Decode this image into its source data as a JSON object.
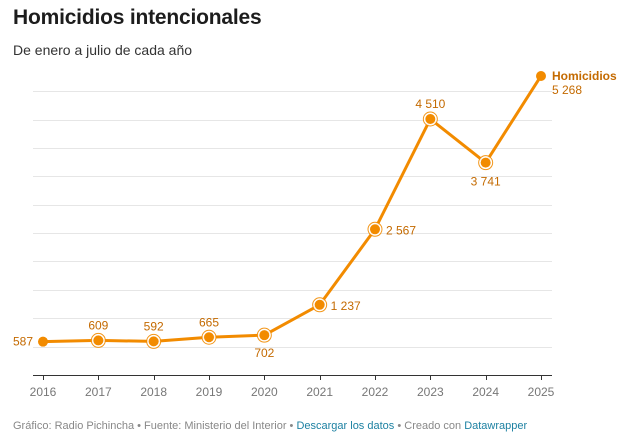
{
  "header": {
    "title": "Homicidios intencionales",
    "subtitle": "De enero a julio de cada año"
  },
  "footer": {
    "credit": "Gráfico: Radio Pichincha",
    "separator": " • ",
    "source": "Fuente: Ministerio del Interior",
    "download_link": "Descargar los datos",
    "created_with": "Creado con",
    "tool_link": "Datawrapper"
  },
  "colors": {
    "line": "#f28b00",
    "label": "#c46a00",
    "grid": "#e6e6e6",
    "axis": "#333333",
    "link": "#1d81a2"
  },
  "chart_data": {
    "type": "line",
    "title": "Homicidios intencionales",
    "subtitle": "De enero a julio de cada año",
    "xlabel": "",
    "ylabel": "",
    "x": [
      "2016",
      "2017",
      "2018",
      "2019",
      "2020",
      "2021",
      "2022",
      "2023",
      "2024",
      "2025"
    ],
    "series": [
      {
        "name": "Homicidios",
        "values": [
          587,
          609,
          592,
          665,
          702,
          1237,
          2567,
          4510,
          3741,
          5268
        ],
        "value_labels": [
          "587",
          "609",
          "592",
          "665",
          "702",
          "1 237",
          "2 567",
          "4 510",
          "3 741",
          "5 268"
        ]
      }
    ],
    "ylim": [
      0,
      5268
    ],
    "y_gridlines": [
      500,
      1000,
      1500,
      2000,
      2500,
      3000,
      3500,
      4000,
      4500,
      5000
    ],
    "y_tick_labels_shown": false,
    "grid": true,
    "legend": "inline-end-label"
  }
}
